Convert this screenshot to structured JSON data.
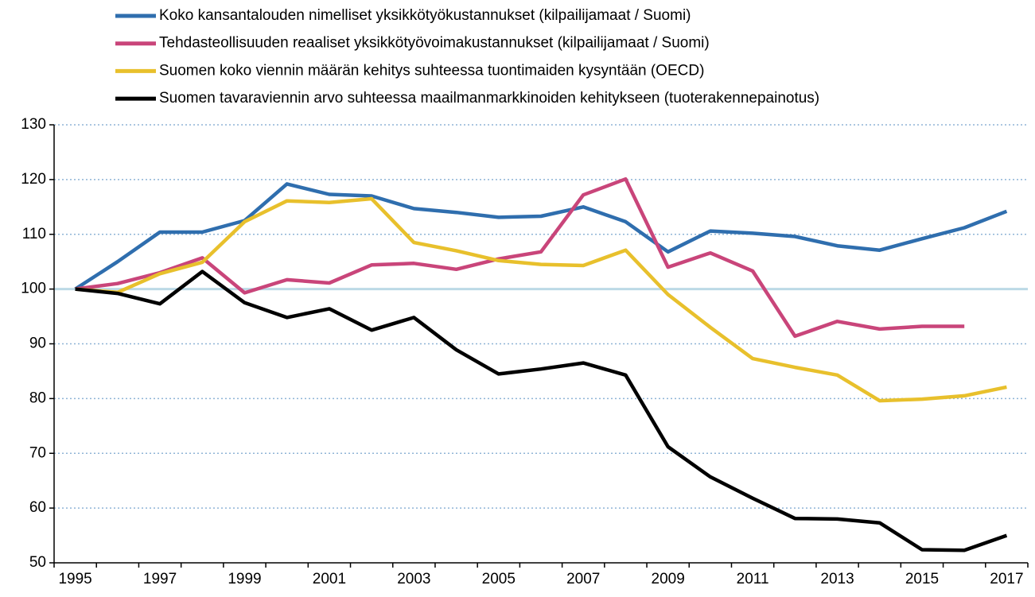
{
  "chart_data": {
    "type": "line",
    "categories": [
      "1995",
      null,
      "1997",
      null,
      "1999",
      null,
      "2001",
      null,
      "2003",
      null,
      "2005",
      null,
      "2007",
      null,
      "2009",
      null,
      "2011",
      null,
      "2013",
      null,
      "2015",
      null,
      "2017"
    ],
    "series": [
      {
        "name": "Koko kansantalouden nimelliset yksikkötyökustannukset (kilpailijamaat / Suomi)",
        "color": "#2f6eae",
        "values": [
          100,
          105,
          110.4,
          110.4,
          112.5,
          119.2,
          117.3,
          117,
          114.7,
          114,
          113.1,
          113.3,
          115,
          112.3,
          106.8,
          110.6,
          110.2,
          109.6,
          107.9,
          107.1,
          109.2,
          111.2,
          114.2
        ]
      },
      {
        "name": "Tehdasteollisuuden reaaliset yksikkötyövoimakustannukset (kilpailijamaat / Suomi)",
        "color": "#c9457a",
        "values": [
          100,
          101,
          103,
          105.7,
          99.3,
          101.7,
          101.1,
          104.4,
          104.7,
          103.6,
          105.5,
          106.8,
          117.2,
          120.1,
          104,
          106.6,
          103.3,
          91.4,
          94.1,
          92.7,
          93.2,
          93.2,
          null
        ]
      },
      {
        "name": "Suomen koko viennin määrän kehitys suhteessa tuontimaiden kysyntään (OECD)",
        "color": "#e8c02c",
        "values": [
          100,
          99.4,
          102.8,
          104.9,
          112.3,
          116.1,
          115.8,
          116.5,
          108.5,
          107,
          105.2,
          104.5,
          104.3,
          107.1,
          99,
          93,
          87.3,
          85.7,
          84.3,
          79.6,
          79.9,
          80.5,
          82.1
        ]
      },
      {
        "name": "Suomen tavaraviennin arvo suhteessa maailmanmarkkinoiden kehitykseen (tuoterakennepainotus)",
        "color": "#000000",
        "values": [
          100,
          99.2,
          97.3,
          103.2,
          97.5,
          94.8,
          96.4,
          92.5,
          94.8,
          88.9,
          84.5,
          85.4,
          86.5,
          84.3,
          71.2,
          65.7,
          61.8,
          58.1,
          58,
          57.3,
          52.4,
          52.3,
          55
        ]
      }
    ],
    "ylim": [
      50,
      130
    ],
    "yticks": [
      50,
      60,
      70,
      80,
      90,
      100,
      110,
      120,
      130
    ],
    "reference_line": 100,
    "grid": true,
    "legend": "top"
  }
}
